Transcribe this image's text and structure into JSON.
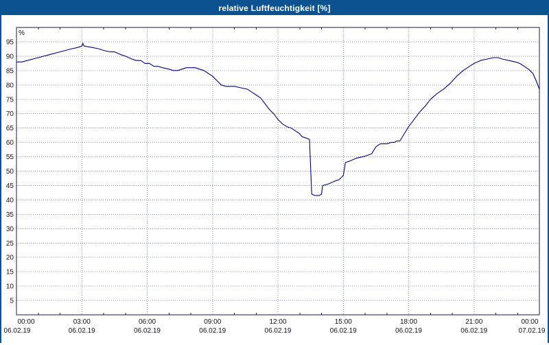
{
  "window": {
    "title": "relative Luftfeuchtigkeit [%]"
  },
  "colors": {
    "titlebar_bg": "#0d5290",
    "titlebar_text": "#ffffff",
    "plot_bg": "#ffffff",
    "grid": "#8890b0",
    "axis_border": "#1a1a3a",
    "axis_text": "#101020",
    "line": "#000080"
  },
  "chart_data": {
    "type": "line",
    "title": "relative Luftfeuchtigkeit [%]",
    "xlabel": "",
    "ylabel": "%",
    "ylim": [
      0,
      100
    ],
    "y_ticks": [
      5,
      10,
      15,
      20,
      25,
      30,
      35,
      40,
      45,
      50,
      55,
      60,
      65,
      70,
      75,
      80,
      85,
      90,
      95
    ],
    "grid": true,
    "legend": "none",
    "x_axis": {
      "hours": [
        0,
        3,
        6,
        9,
        12,
        15,
        18,
        21,
        24
      ],
      "time_labels": [
        "00:00",
        "03:00",
        "06:00",
        "09:00",
        "12:00",
        "15:00",
        "18:00",
        "21:00",
        "00:00"
      ],
      "date_labels": [
        "06.02.19",
        "06.02.19",
        "06.02.19",
        "06.02.19",
        "06.02.19",
        "06.02.19",
        "06.02.19",
        "06.02.19",
        "07.02.19"
      ],
      "minor_tick_every_hours": 1
    },
    "series": [
      {
        "name": "relative Luftfeuchtigkeit",
        "color": "#000080",
        "x": [
          0,
          0.25,
          0.5,
          1,
          1.5,
          2,
          2.5,
          2.8,
          3,
          3.05,
          3.1,
          3.5,
          3.8,
          4,
          4.3,
          4.5,
          4.8,
          5,
          5.3,
          5.5,
          5.7,
          5.9,
          6.1,
          6.3,
          6.5,
          6.7,
          7,
          7.2,
          7.4,
          7.6,
          7.8,
          8.2,
          8.4,
          8.6,
          8.8,
          9,
          9.2,
          9.4,
          9.6,
          10,
          10.3,
          10.6,
          10.8,
          11,
          11.2,
          11.4,
          11.6,
          11.8,
          12,
          12.2,
          12.4,
          12.6,
          12.8,
          13,
          13.1,
          13.3,
          13.45,
          13.55,
          13.7,
          13.9,
          14,
          14.05,
          14.3,
          14.6,
          14.8,
          15,
          15.1,
          15.3,
          15.6,
          15.9,
          16.1,
          16.3,
          16.5,
          16.7,
          17,
          17.2,
          17.35,
          17.45,
          17.6,
          17.8,
          18,
          18.2,
          18.5,
          18.8,
          19,
          19.3,
          19.6,
          19.9,
          20.2,
          20.5,
          20.8,
          21,
          21.3,
          21.6,
          21.9,
          22.1,
          22.3,
          22.6,
          22.9,
          23.1,
          23.3,
          23.5,
          23.7,
          23.85,
          24
        ],
        "y": [
          88,
          88,
          88.5,
          89.5,
          90.5,
          91.5,
          92.5,
          93,
          93.5,
          94.5,
          93.5,
          93,
          92.5,
          92,
          91.5,
          91.5,
          90.5,
          90,
          89,
          88.5,
          88.5,
          87.5,
          87.5,
          86.5,
          86.5,
          86,
          85.5,
          85,
          85,
          85.5,
          86,
          86,
          85.5,
          85,
          84,
          83,
          81.5,
          80,
          79.5,
          79.5,
          79,
          78.5,
          77.5,
          76.5,
          75.5,
          73.5,
          71.5,
          70,
          68,
          66.5,
          65.5,
          65,
          64,
          63,
          62,
          61.5,
          61,
          42,
          41.5,
          41.5,
          42,
          45,
          45.5,
          46.5,
          47,
          48.5,
          53,
          53.5,
          54.5,
          55,
          55.5,
          56,
          58.5,
          59.5,
          59.5,
          60,
          60,
          60.5,
          60.5,
          63,
          65.5,
          67.5,
          70.5,
          73,
          75,
          77,
          78.5,
          80.5,
          83,
          85,
          86.5,
          87.5,
          88.5,
          89,
          89.5,
          89.5,
          89,
          88.5,
          88,
          87.5,
          86.5,
          85.5,
          84,
          81.5,
          78.5
        ]
      }
    ]
  }
}
